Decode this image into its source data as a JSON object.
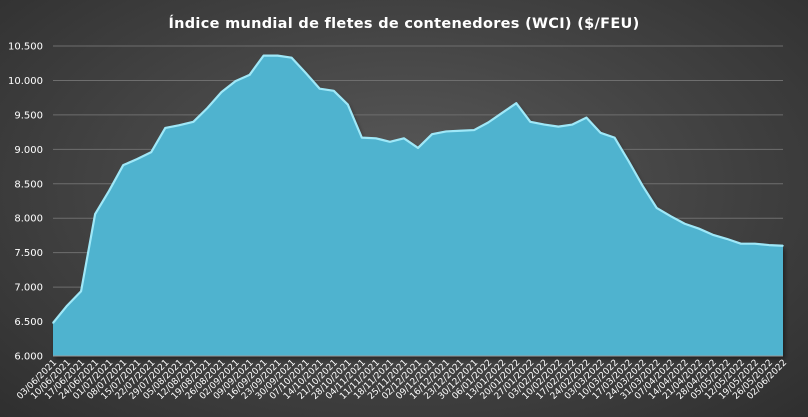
{
  "chart_data": {
    "type": "area",
    "title": "Índice mundial de fletes de contenedores (WCI) ($/FEU)",
    "xlabel": "",
    "ylabel": "",
    "ylim": [
      6000,
      10500
    ],
    "y_tick_labels": [
      "6.000",
      "6.500",
      "7.000",
      "7.500",
      "8.000",
      "8.500",
      "9.000",
      "9.500",
      "10.000",
      "10.500"
    ],
    "y_tick_values": [
      6000,
      6500,
      7000,
      7500,
      8000,
      8500,
      9000,
      9500,
      10000,
      10500
    ],
    "grid": "horizontal",
    "legend": "none",
    "colors": {
      "area_fill": "#4fb3cf",
      "area_edge": "#9fe8f8",
      "grid": "#6e6e6e",
      "text": "#ffffff"
    },
    "categories": [
      "03/06/2021",
      "10/06/2021",
      "17/06/2021",
      "24/06/2021",
      "01/07/2021",
      "08/07/2021",
      "15/07/2021",
      "22/07/2021",
      "29/07/2021",
      "05/08/2021",
      "12/08/2021",
      "19/08/2021",
      "26/08/2021",
      "02/09/2021",
      "09/09/2021",
      "16/09/2021",
      "23/09/2021",
      "30/09/2021",
      "07/10/2021",
      "14/10/2021",
      "21/10/2021",
      "28/10/2021",
      "04/11/2021",
      "11/11/2021",
      "18/11/2021",
      "25/11/2021",
      "02/12/2021",
      "09/12/2021",
      "16/12/2021",
      "23/12/2021",
      "30/12/2021",
      "06/01/2022",
      "13/01/2022",
      "20/01/2022",
      "27/01/2022",
      "03/02/2022",
      "10/02/2022",
      "17/02/2022",
      "24/02/2022",
      "03/03/2022",
      "10/03/2022",
      "17/03/2022",
      "24/03/2022",
      "31/03/2022",
      "07/04/2022",
      "14/04/2022",
      "21/04/2022",
      "28/04/2022",
      "05/05/2022",
      "12/05/2022",
      "19/05/2022",
      "26/05/2022",
      "02/06/2022"
    ],
    "series": [
      {
        "values": [
          6480,
          6730,
          6940,
          8060,
          8400,
          8770,
          8860,
          8960,
          9310,
          9350,
          9400,
          9600,
          9830,
          9990,
          10080,
          10360,
          10360,
          10330,
          10110,
          9880,
          9850,
          9650,
          9170,
          9160,
          9110,
          9160,
          9020,
          9220,
          9260,
          9270,
          9280,
          9390,
          9530,
          9670,
          9400,
          9360,
          9330,
          9360,
          9460,
          9240,
          9170,
          8830,
          8470,
          8150,
          8030,
          7920,
          7850,
          7760,
          7700,
          7630,
          7630,
          7610,
          7600
        ]
      }
    ]
  }
}
